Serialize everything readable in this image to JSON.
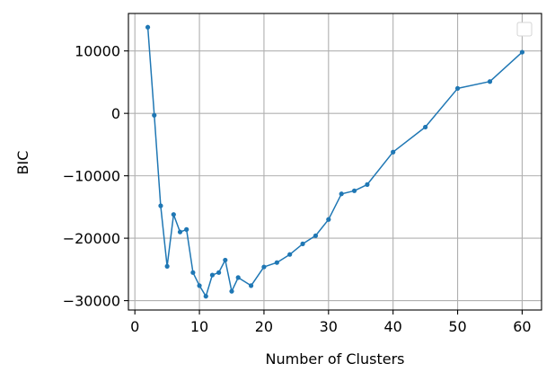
{
  "chart_data": {
    "type": "line",
    "title": "",
    "xlabel": "Number of Clusters",
    "ylabel": "BIC",
    "xlim": [
      -1,
      63
    ],
    "ylim": [
      -31500,
      16000
    ],
    "xticks": [
      0,
      10,
      20,
      30,
      40,
      50,
      60
    ],
    "yticks": [
      -30000,
      -20000,
      -10000,
      0,
      10000
    ],
    "xtick_labels": [
      "0",
      "10",
      "20",
      "30",
      "40",
      "50",
      "60"
    ],
    "ytick_labels": [
      "−30000",
      "−20000",
      "−10000",
      "0",
      "10000"
    ],
    "grid": true,
    "legend": "top-right",
    "color": "#1f77b4",
    "series": [
      {
        "x": [
          2,
          3,
          4,
          5,
          6,
          7,
          8,
          9,
          10,
          11,
          12,
          13,
          14,
          15,
          16,
          18,
          20,
          22,
          24,
          26,
          28,
          30,
          32,
          34,
          36,
          40,
          45,
          50,
          55,
          60
        ],
        "values": [
          13800,
          -300,
          -14800,
          -24500,
          -16200,
          -19000,
          -18600,
          -25500,
          -27600,
          -29300,
          -25900,
          -25500,
          -23500,
          -28500,
          -26300,
          -27600,
          -24600,
          -23900,
          -22600,
          -20900,
          -19600,
          -17000,
          -12900,
          -12400,
          -11400,
          -6200,
          -2200,
          4000,
          5100,
          9800
        ]
      }
    ]
  }
}
